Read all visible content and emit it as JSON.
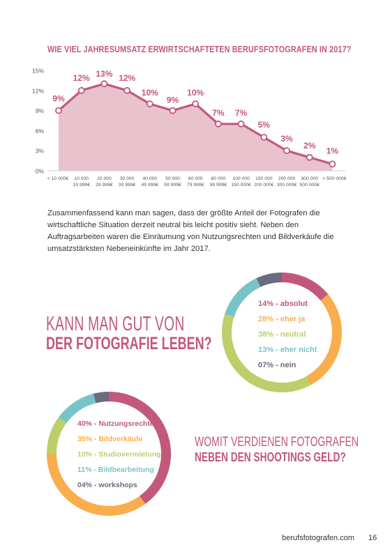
{
  "chart_title": "WIE VIEL JAHRESUMSATZ ERWIRTSCHAFTETEN BERUFSFOTOGRAFEN IN 2017?",
  "chart_data": {
    "type": "area",
    "title": "WIE VIEL JAHRESUMSATZ ERWIRTSCHAFTETEN BERUFSFOTOGRAFEN IN 2017?",
    "yticks": [
      "15%",
      "12%",
      "9%",
      "6%",
      "3%",
      "0%"
    ],
    "ylim": [
      0,
      15
    ],
    "categories": [
      [
        "< 10 000€"
      ],
      [
        "10 000",
        "19 999€"
      ],
      [
        "20 000",
        "29 999€"
      ],
      [
        "30 000",
        "39 999€"
      ],
      [
        "40 000",
        "49 999€"
      ],
      [
        "50 000",
        "59 999€"
      ],
      [
        "60 000",
        "79 999€"
      ],
      [
        "80 000",
        "99 999€"
      ],
      [
        "100 000",
        "150 000€"
      ],
      [
        "150 000",
        "200 000€"
      ],
      [
        "200 000",
        "300 000€"
      ],
      [
        "300 000",
        "500 000€"
      ],
      [
        "> 500 000€"
      ]
    ],
    "values": [
      9,
      12,
      13,
      12,
      10,
      9,
      10,
      7,
      7,
      5,
      3,
      2,
      1
    ],
    "labels": [
      "9%",
      "12%",
      "13%",
      "12%",
      "10%",
      "9%",
      "10%",
      "7%",
      "7%",
      "5%",
      "3%",
      "2%",
      "1%"
    ],
    "line_color": "#c2587a",
    "fill_color": "#e8c2cd"
  },
  "summary_text": "Zusammenfassend kann man sagen, dass der größte Anteil der Fotografen die wirtschaftliche Situation derzeit neutral bis leicht positiv sieht. Neben den Auftragsarbeiten waren die Einräumung von Nutzungsrechten und Bildverkäufe die umsatzstärksten Nebeneinkünfte im Jahr 2017.",
  "question1": {
    "line1": "KANN MAN GUT VON",
    "line2": "DER FOTOGRAFIE LEBEN?"
  },
  "donut1": [
    {
      "label": "14% - absolut",
      "value": 14,
      "color": "#c2587a"
    },
    {
      "label": "28% - eher ja",
      "value": 28,
      "color": "#f9ad4c"
    },
    {
      "label": "38% - neutral",
      "value": 38,
      "color": "#bccf6a"
    },
    {
      "label": "13% - eher nicht",
      "value": 13,
      "color": "#78c3c8"
    },
    {
      "label": "07% - nein",
      "value": 7,
      "color": "#6b6b7f"
    }
  ],
  "question2": {
    "line1": "WOMIT VERDIENEN FOTOGRAFEN",
    "line2": "NEBEN DEN SHOOTINGS GELD?"
  },
  "donut2": [
    {
      "label": "40% - Nutzungsrechte",
      "value": 40,
      "color": "#c2587a"
    },
    {
      "label": "35% - Bildverkäufe",
      "value": 35,
      "color": "#f9ad4c"
    },
    {
      "label": "10% - Studiovermietung",
      "value": 10,
      "color": "#bccf6a"
    },
    {
      "label": "11% - Bildbearbeitung",
      "value": 11,
      "color": "#78c3c8"
    },
    {
      "label": "04% - workshops",
      "value": 4,
      "color": "#6b6b7f"
    }
  ],
  "footer": {
    "site": "berufsfotografen.com",
    "page": "16"
  }
}
